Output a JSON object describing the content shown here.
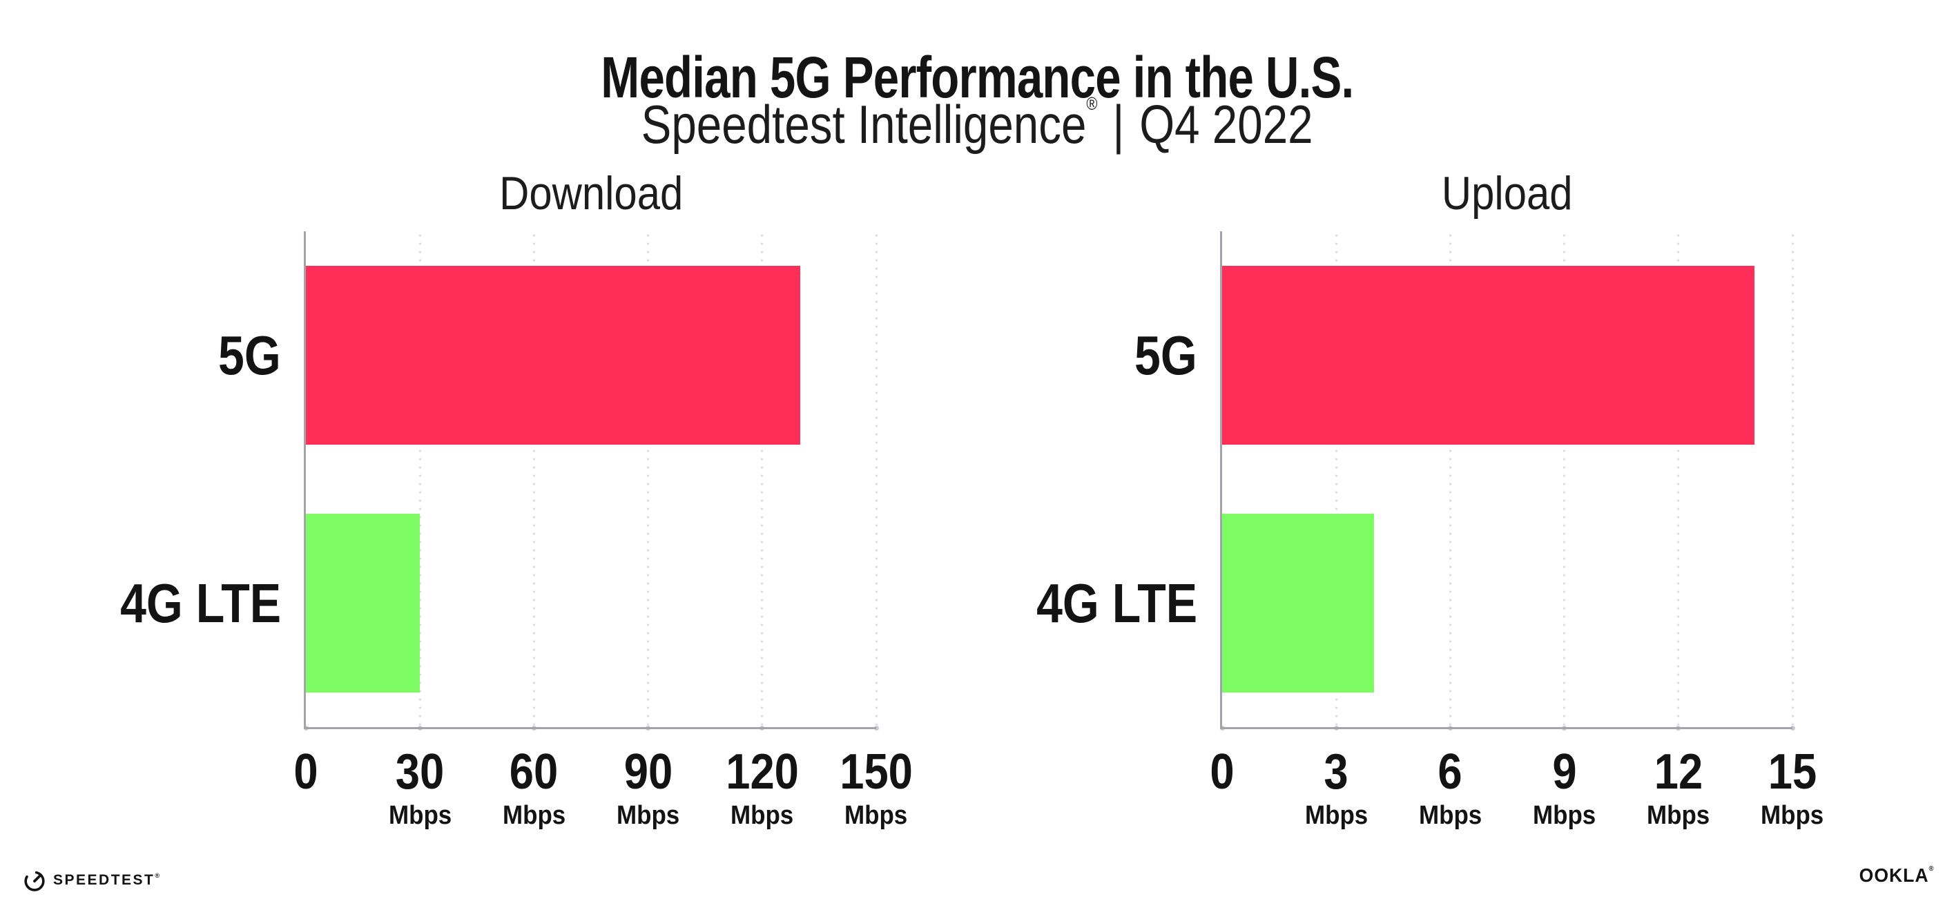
{
  "title": "Median 5G Performance in the U.S.",
  "subtitle": {
    "brand": "Speedtest Intelligence",
    "registered_mark": "®",
    "separator": "|",
    "period": "Q4 2022"
  },
  "colors": {
    "bar_5g": "#fd2e57",
    "bar_4g_lte": "#7efc64",
    "axis": "#a3a3aa",
    "gridline_dot": "#d9d9e4",
    "text": "#131313"
  },
  "chart_data": [
    {
      "type": "bar",
      "orientation": "horizontal",
      "title": "Download",
      "categories": [
        "5G",
        "4G LTE"
      ],
      "values": [
        130,
        30
      ],
      "unit": "Mbps",
      "xlim": [
        0,
        150
      ],
      "ticks": [
        0,
        30,
        60,
        90,
        120,
        150
      ],
      "tick_unit_label": "Mbps",
      "grid": "dotted-vertical",
      "legend": "none"
    },
    {
      "type": "bar",
      "orientation": "horizontal",
      "title": "Upload",
      "categories": [
        "5G",
        "4G LTE"
      ],
      "values": [
        14,
        4
      ],
      "unit": "Mbps",
      "xlim": [
        0,
        15
      ],
      "ticks": [
        0,
        3,
        6,
        9,
        12,
        15
      ],
      "tick_unit_label": "Mbps",
      "grid": "dotted-vertical",
      "legend": "none"
    }
  ],
  "footer": {
    "speedtest_wordmark": "SPEEDTEST",
    "speedtest_mark": "®",
    "ookla_wordmark": "OOKLA",
    "ookla_mark": "®"
  }
}
